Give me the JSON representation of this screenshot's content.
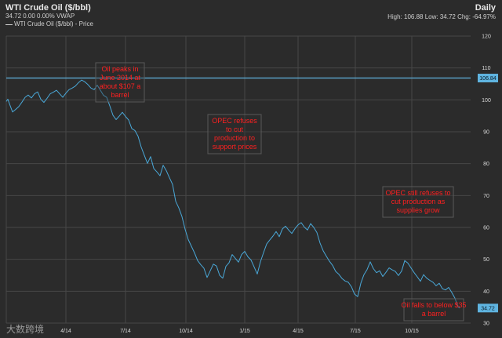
{
  "header": {
    "title": "WTI Crude Oil ($/bbl)",
    "stats_left": "34.72  0.00  0.00%  VWAP",
    "series_label": "WTI Crude Oil ($/bbl) - Price",
    "frequency": "Daily",
    "stats_right": "High: 106.88  Low: 34.72  Chg: -64.97%"
  },
  "watermark": "大数跨境",
  "chart_data": {
    "type": "line",
    "title": "WTI Crude Oil ($/bbl)",
    "xlabel": "",
    "ylabel": "",
    "ylim": [
      30,
      120
    ],
    "y_ticks": [
      30,
      40,
      50,
      60,
      70,
      80,
      90,
      100,
      110,
      120
    ],
    "x_ticks": [
      "4/14",
      "7/14",
      "10/14",
      "1/15",
      "4/15",
      "7/15",
      "10/15"
    ],
    "grid": true,
    "line_color": "#4aa8d8",
    "annotation_color": "#ff2020",
    "reference_line": {
      "value": 106.84,
      "label": "106.84",
      "color": "#5fb4e0"
    },
    "last_value": {
      "value": 34.72,
      "label": "34.72",
      "color": "#5fb4e0"
    },
    "series": [
      {
        "name": "WTI Crude Oil ($/bbl) - Price",
        "x": [
          0,
          2,
          4,
          8,
          12,
          16,
          20,
          24,
          28,
          32,
          36,
          40,
          44,
          48,
          52,
          56,
          60,
          64,
          68,
          72,
          76,
          80,
          84,
          88,
          92,
          96,
          100,
          104,
          108,
          112,
          116,
          120,
          124,
          128,
          132,
          136,
          140,
          144,
          148,
          152,
          156,
          160,
          164,
          168,
          172,
          176,
          180,
          184,
          188,
          192,
          196,
          200,
          204,
          208,
          212,
          216,
          220,
          224,
          228,
          232,
          236,
          240,
          244,
          248,
          252,
          256,
          260,
          264,
          268,
          272,
          276,
          280,
          284,
          288,
          292,
          296,
          300,
          304,
          308,
          312,
          316,
          320,
          324,
          328,
          332,
          336,
          340,
          344,
          348,
          352,
          356,
          360,
          364,
          368,
          372,
          376,
          380,
          384,
          388,
          392,
          396,
          400,
          404,
          408,
          412,
          416,
          420,
          424,
          428,
          432,
          436,
          440,
          444,
          448,
          452,
          456,
          460,
          464,
          468,
          472,
          476,
          480,
          484,
          488,
          492,
          496,
          500,
          504,
          508,
          512,
          516,
          520,
          524,
          528,
          532,
          536,
          540,
          544,
          548,
          552,
          556,
          560,
          564,
          568,
          572,
          576,
          578
        ],
        "values": [
          99.5,
          100.2,
          98.8,
          96.2,
          97.0,
          97.9,
          99.3,
          100.8,
          101.5,
          100.6,
          101.9,
          102.5,
          100.2,
          99.2,
          100.5,
          101.9,
          102.4,
          103.0,
          101.9,
          100.8,
          102.1,
          103.2,
          103.7,
          104.3,
          105.4,
          106.2,
          105.7,
          104.8,
          103.7,
          103.2,
          104.6,
          103.0,
          101.4,
          100.8,
          98.1,
          95.2,
          93.8,
          94.9,
          96.1,
          94.8,
          93.7,
          91.0,
          90.4,
          88.6,
          85.2,
          82.6,
          80.1,
          82.2,
          78.5,
          77.4,
          76.2,
          79.5,
          77.8,
          75.6,
          73.5,
          68.2,
          66.1,
          63.4,
          59.4,
          56.2,
          54.1,
          52.0,
          49.6,
          48.3,
          47.2,
          44.3,
          46.4,
          48.5,
          47.9,
          45.0,
          44.1,
          47.8,
          48.9,
          51.5,
          50.3,
          49.1,
          51.5,
          52.5,
          50.8,
          49.8,
          47.6,
          45.4,
          49.2,
          52.1,
          54.8,
          56.1,
          57.3,
          58.7,
          57.1,
          59.5,
          60.4,
          59.2,
          58.1,
          59.6,
          60.8,
          61.5,
          60.1,
          59.2,
          61.2,
          60.0,
          58.4,
          55.1,
          52.7,
          51.0,
          49.4,
          48.1,
          46.2,
          45.3,
          44.0,
          43.2,
          42.8,
          41.4,
          39.1,
          38.3,
          42.5,
          45.2,
          46.8,
          49.2,
          47.1,
          45.8,
          46.4,
          44.6,
          45.9,
          47.3,
          46.7,
          46.2,
          44.9,
          46.3,
          49.6,
          48.8,
          47.3,
          45.8,
          44.5,
          43.1,
          45.2,
          44.1,
          43.4,
          42.8,
          41.7,
          42.5,
          40.8,
          40.4,
          41.2,
          39.6,
          37.8,
          35.1,
          34.72
        ]
      }
    ],
    "annotations": [
      {
        "lines": [
          "Oil peaks in",
          "June 2014 at",
          "about $107 a",
          "barrel"
        ]
      },
      {
        "lines": [
          "OPEC refuses",
          "to cut",
          "production to",
          "support prices"
        ]
      },
      {
        "lines": [
          "OPEC still refuses to",
          "cut production as",
          "supplies grow"
        ]
      },
      {
        "lines": [
          "Oil falls to below $35",
          "a barrel"
        ]
      }
    ]
  }
}
